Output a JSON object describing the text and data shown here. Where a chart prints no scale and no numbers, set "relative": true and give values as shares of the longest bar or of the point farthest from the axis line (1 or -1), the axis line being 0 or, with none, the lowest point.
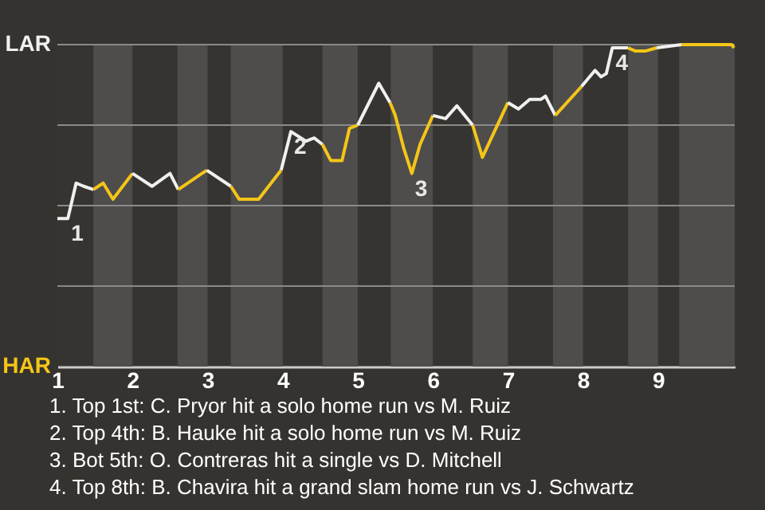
{
  "chart_data": {
    "type": "line",
    "relative": true,
    "series": [
      {
        "name": "LAR",
        "color": "#f0f0f0",
        "x": [
          1.0,
          1.14,
          1.25,
          1.35,
          1.48
        ],
        "values": [
          0.46,
          0.46,
          0.57,
          0.56,
          0.55
        ]
      },
      {
        "name": "HAR",
        "color": "#f5c518",
        "x": [
          1.48,
          1.61,
          1.74,
          2.0
        ],
        "values": [
          0.55,
          0.57,
          0.52,
          0.6
        ]
      },
      {
        "color": "#f0f0f0",
        "x": [
          2.0,
          2.26,
          2.5,
          2.61
        ],
        "values": [
          0.6,
          0.56,
          0.6,
          0.55
        ]
      },
      {
        "color": "#f5c518",
        "x": [
          2.61,
          2.99
        ],
        "values": [
          0.55,
          0.61
        ]
      },
      {
        "color": "#f0f0f0",
        "x": [
          2.99,
          3.31
        ],
        "values": [
          0.61,
          0.56
        ]
      },
      {
        "color": "#f5c518",
        "x": [
          3.31,
          3.42,
          3.68,
          3.98
        ],
        "values": [
          0.56,
          0.52,
          0.52,
          0.61
        ]
      },
      {
        "color": "#f0f0f0",
        "x": [
          3.98,
          4.11,
          4.31,
          4.42,
          4.53
        ],
        "values": [
          0.61,
          0.73,
          0.7,
          0.71,
          0.69
        ]
      },
      {
        "color": "#f5c518",
        "x": [
          4.53,
          4.64,
          4.79,
          4.89,
          5.0
        ],
        "values": [
          0.69,
          0.64,
          0.64,
          0.74,
          0.75
        ]
      },
      {
        "color": "#f0f0f0",
        "x": [
          5.0,
          5.28,
          5.43
        ],
        "values": [
          0.75,
          0.88,
          0.82
        ]
      },
      {
        "color": "#f5c518",
        "x": [
          5.43,
          5.5,
          5.61,
          5.72,
          5.83,
          6.0
        ],
        "values": [
          0.82,
          0.78,
          0.68,
          0.6,
          0.69,
          0.78
        ]
      },
      {
        "color": "#f0f0f0",
        "x": [
          6.0,
          6.17,
          6.32,
          6.53
        ],
        "values": [
          0.78,
          0.77,
          0.81,
          0.75
        ]
      },
      {
        "color": "#f5c518",
        "x": [
          6.53,
          6.66,
          7.0
        ],
        "values": [
          0.75,
          0.65,
          0.82
        ]
      },
      {
        "color": "#f0f0f0",
        "x": [
          7.0,
          7.14,
          7.29,
          7.44,
          7.5,
          7.63
        ],
        "values": [
          0.82,
          0.8,
          0.83,
          0.83,
          0.84,
          0.78
        ]
      },
      {
        "color": "#f5c518",
        "x": [
          7.63,
          7.98
        ],
        "values": [
          0.78,
          0.87
        ]
      },
      {
        "color": "#f0f0f0",
        "x": [
          7.98,
          8.16,
          8.24,
          8.31,
          8.39,
          8.6
        ],
        "values": [
          0.87,
          0.92,
          0.9,
          0.91,
          0.99,
          0.99
        ]
      },
      {
        "color": "#f5c518",
        "x": [
          8.6,
          8.7,
          8.83,
          8.98
        ],
        "values": [
          0.99,
          0.98,
          0.98,
          0.99
        ]
      },
      {
        "color": "#f0f0f0",
        "x": [
          8.98,
          9.31
        ],
        "values": [
          0.99,
          1.0
        ]
      },
      {
        "color": "#f5c518",
        "x": [
          9.31,
          9.98,
          10.01
        ],
        "values": [
          1.0,
          1.0,
          0.99
        ]
      }
    ],
    "xlim": [
      1,
      10.02
    ],
    "xticks": [
      1,
      2,
      3,
      4,
      5,
      6,
      7,
      8,
      9
    ],
    "grid": "y",
    "bands": [
      {
        "axis": "x",
        "from": 1.48,
        "to": 2,
        "color": "#4e4d4b"
      },
      {
        "axis": "x",
        "from": 2.6,
        "to": 3,
        "color": "#4e4d4b"
      },
      {
        "axis": "x",
        "from": 3.31,
        "to": 4,
        "color": "#4e4d4b"
      },
      {
        "axis": "x",
        "from": 4.53,
        "to": 5,
        "color": "#4e4d4b"
      },
      {
        "axis": "x",
        "from": 5.44,
        "to": 6,
        "color": "#4e4d4b"
      },
      {
        "axis": "x",
        "from": 6.53,
        "to": 7,
        "color": "#4e4d4b"
      },
      {
        "axis": "x",
        "from": 7.6,
        "to": 8,
        "color": "#4e4d4b"
      },
      {
        "axis": "x",
        "from": 8.6,
        "to": 9,
        "color": "#4e4d4b"
      },
      {
        "axis": "x",
        "from": 9.28,
        "to": 10.02,
        "color": "#4e4d4b"
      }
    ],
    "annotations": [
      {
        "text": "1",
        "x": 1.14,
        "y": 0.46
      },
      {
        "text": "2",
        "x": 4.11,
        "y": 0.73
      },
      {
        "text": "3",
        "x": 5.72,
        "y": 0.6
      },
      {
        "text": "4",
        "x": 8.39,
        "y": 0.99
      },
      "1. Top 1st: C. Pryor hit a solo home run vs M. Ruiz",
      "2. Top 4th: B. Hauke hit a solo home run vs M. Ruiz",
      "3. Bot 5th: O. Contreras hit a single vs D. Mitchell",
      "4. Top 8th: B. Chavira hit a grand slam home run vs J. Schwartz"
    ]
  }
}
